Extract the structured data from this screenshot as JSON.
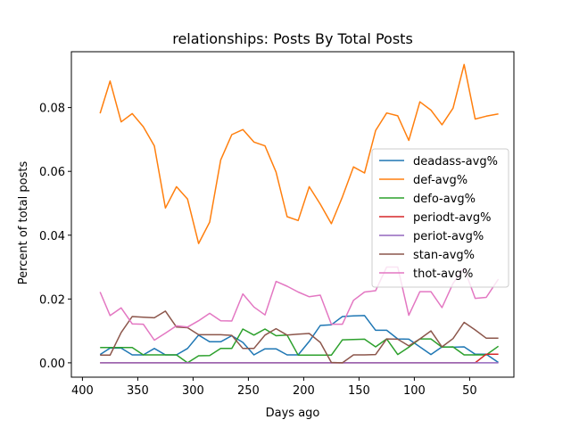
{
  "chart_data": {
    "type": "line",
    "title": "relationships: Posts By Total Posts",
    "xlabel": "Days ago",
    "ylabel": "Percent of total posts",
    "xlim": [
      410,
      10
    ],
    "ylim": [
      -0.0045,
      0.0975
    ],
    "xticks": [
      400,
      350,
      300,
      250,
      200,
      150,
      100,
      50
    ],
    "xtick_labels": [
      "400",
      "350",
      "300",
      "250",
      "200",
      "150",
      "100",
      "50"
    ],
    "yticks": [
      0.0,
      0.02,
      0.04,
      0.06,
      0.08
    ],
    "ytick_labels": [
      "0.00",
      "0.02",
      "0.04",
      "0.06",
      "0.08"
    ],
    "grid": false,
    "legend_position": "center-right",
    "x": [
      384,
      375,
      365,
      355,
      345,
      335,
      325,
      315,
      305,
      295,
      285,
      275,
      265,
      255,
      245,
      235,
      225,
      215,
      205,
      195,
      185,
      175,
      165,
      155,
      145,
      135,
      125,
      115,
      105,
      95,
      85,
      75,
      65,
      55,
      45,
      35,
      24
    ],
    "series": [
      {
        "name": "deadass-avg%",
        "color": "#1f77b4",
        "values": [
          0.0026,
          0.0046,
          0.0046,
          0.0025,
          0.0025,
          0.0045,
          0.0025,
          0.0025,
          0.0045,
          0.0087,
          0.0066,
          0.0066,
          0.0085,
          0.0064,
          0.0025,
          0.0044,
          0.0044,
          0.0025,
          0.0025,
          0.0067,
          0.0117,
          0.0119,
          0.0145,
          0.0147,
          0.0148,
          0.0102,
          0.0102,
          0.0075,
          0.0074,
          0.005,
          0.0026,
          0.005,
          0.0049,
          0.005,
          0.0027,
          0.0027,
          0.0001
        ]
      },
      {
        "name": "def-avg%",
        "color": "#ff7f0e",
        "values": [
          0.0782,
          0.0883,
          0.0755,
          0.0781,
          0.074,
          0.068,
          0.0485,
          0.0552,
          0.0513,
          0.0374,
          0.0441,
          0.0636,
          0.0715,
          0.0731,
          0.0692,
          0.068,
          0.0598,
          0.0458,
          0.0446,
          0.0552,
          0.0497,
          0.0436,
          0.052,
          0.0614,
          0.0595,
          0.0728,
          0.0783,
          0.0774,
          0.0697,
          0.0818,
          0.0792,
          0.0746,
          0.0798,
          0.0935,
          0.0764,
          0.0773,
          0.078
        ]
      },
      {
        "name": "defo-avg%",
        "color": "#2ca02c",
        "values": [
          0.0048,
          0.0048,
          0.0048,
          0.0048,
          0.0025,
          0.0025,
          0.0025,
          0.0025,
          0.0,
          0.0022,
          0.0023,
          0.0045,
          0.0045,
          0.0106,
          0.0087,
          0.0106,
          0.0085,
          0.0087,
          0.0024,
          0.0024,
          0.0024,
          0.0024,
          0.0072,
          0.0073,
          0.0074,
          0.005,
          0.0075,
          0.0026,
          0.0049,
          0.0075,
          0.0075,
          0.0049,
          0.005,
          0.0025,
          0.0025,
          0.0025,
          0.0052
        ]
      },
      {
        "name": "periodt-avg%",
        "color": "#d62728",
        "values": [
          0.0,
          0.0,
          0.0,
          0.0,
          0.0,
          0.0,
          0.0,
          0.0,
          0.0,
          0.0,
          0.0,
          0.0,
          0.0,
          0.0,
          0.0,
          0.0,
          0.0,
          0.0,
          0.0,
          0.0,
          0.0,
          0.0,
          0.0,
          0.0,
          0.0,
          0.0,
          0.0,
          0.0,
          0.0,
          0.0,
          0.0,
          0.0,
          0.0,
          0.0,
          0.0,
          0.0027,
          0.0027
        ]
      },
      {
        "name": "periot-avg%",
        "color": "#9467bd",
        "values": [
          0.0,
          0.0,
          0.0,
          0.0,
          0.0,
          0.0,
          0.0,
          0.0,
          0.0,
          0.0,
          0.0,
          0.0,
          0.0,
          0.0,
          0.0,
          0.0,
          0.0,
          0.0,
          0.0,
          0.0,
          0.0,
          0.0,
          0.0,
          0.0,
          0.0,
          0.0,
          0.0,
          0.0,
          0.0,
          0.0,
          0.0,
          0.0,
          0.0,
          0.0,
          0.0,
          0.0,
          0.0
        ]
      },
      {
        "name": "stan-avg%",
        "color": "#8c564b",
        "values": [
          0.0024,
          0.0024,
          0.0095,
          0.0145,
          0.0143,
          0.0141,
          0.0162,
          0.0112,
          0.011,
          0.0088,
          0.0088,
          0.0088,
          0.0086,
          0.0045,
          0.0045,
          0.0087,
          0.0107,
          0.0087,
          0.009,
          0.0092,
          0.0064,
          0.0001,
          0.0,
          0.0025,
          0.0025,
          0.0026,
          0.0075,
          0.0074,
          0.0053,
          0.0075,
          0.01,
          0.005,
          0.0076,
          0.0127,
          0.0103,
          0.0077,
          0.0077
        ]
      },
      {
        "name": "thot-avg%",
        "color": "#e377c2",
        "values": [
          0.0222,
          0.0148,
          0.0172,
          0.0122,
          0.0121,
          0.0071,
          0.0093,
          0.0116,
          0.0112,
          0.0132,
          0.0155,
          0.0132,
          0.0131,
          0.0216,
          0.0175,
          0.015,
          0.0255,
          0.024,
          0.0222,
          0.0207,
          0.0212,
          0.0121,
          0.0121,
          0.0196,
          0.0222,
          0.0226,
          0.03,
          0.03,
          0.0149,
          0.0223,
          0.0223,
          0.0173,
          0.0249,
          0.0297,
          0.0202,
          0.0205,
          0.0262
        ]
      }
    ]
  }
}
